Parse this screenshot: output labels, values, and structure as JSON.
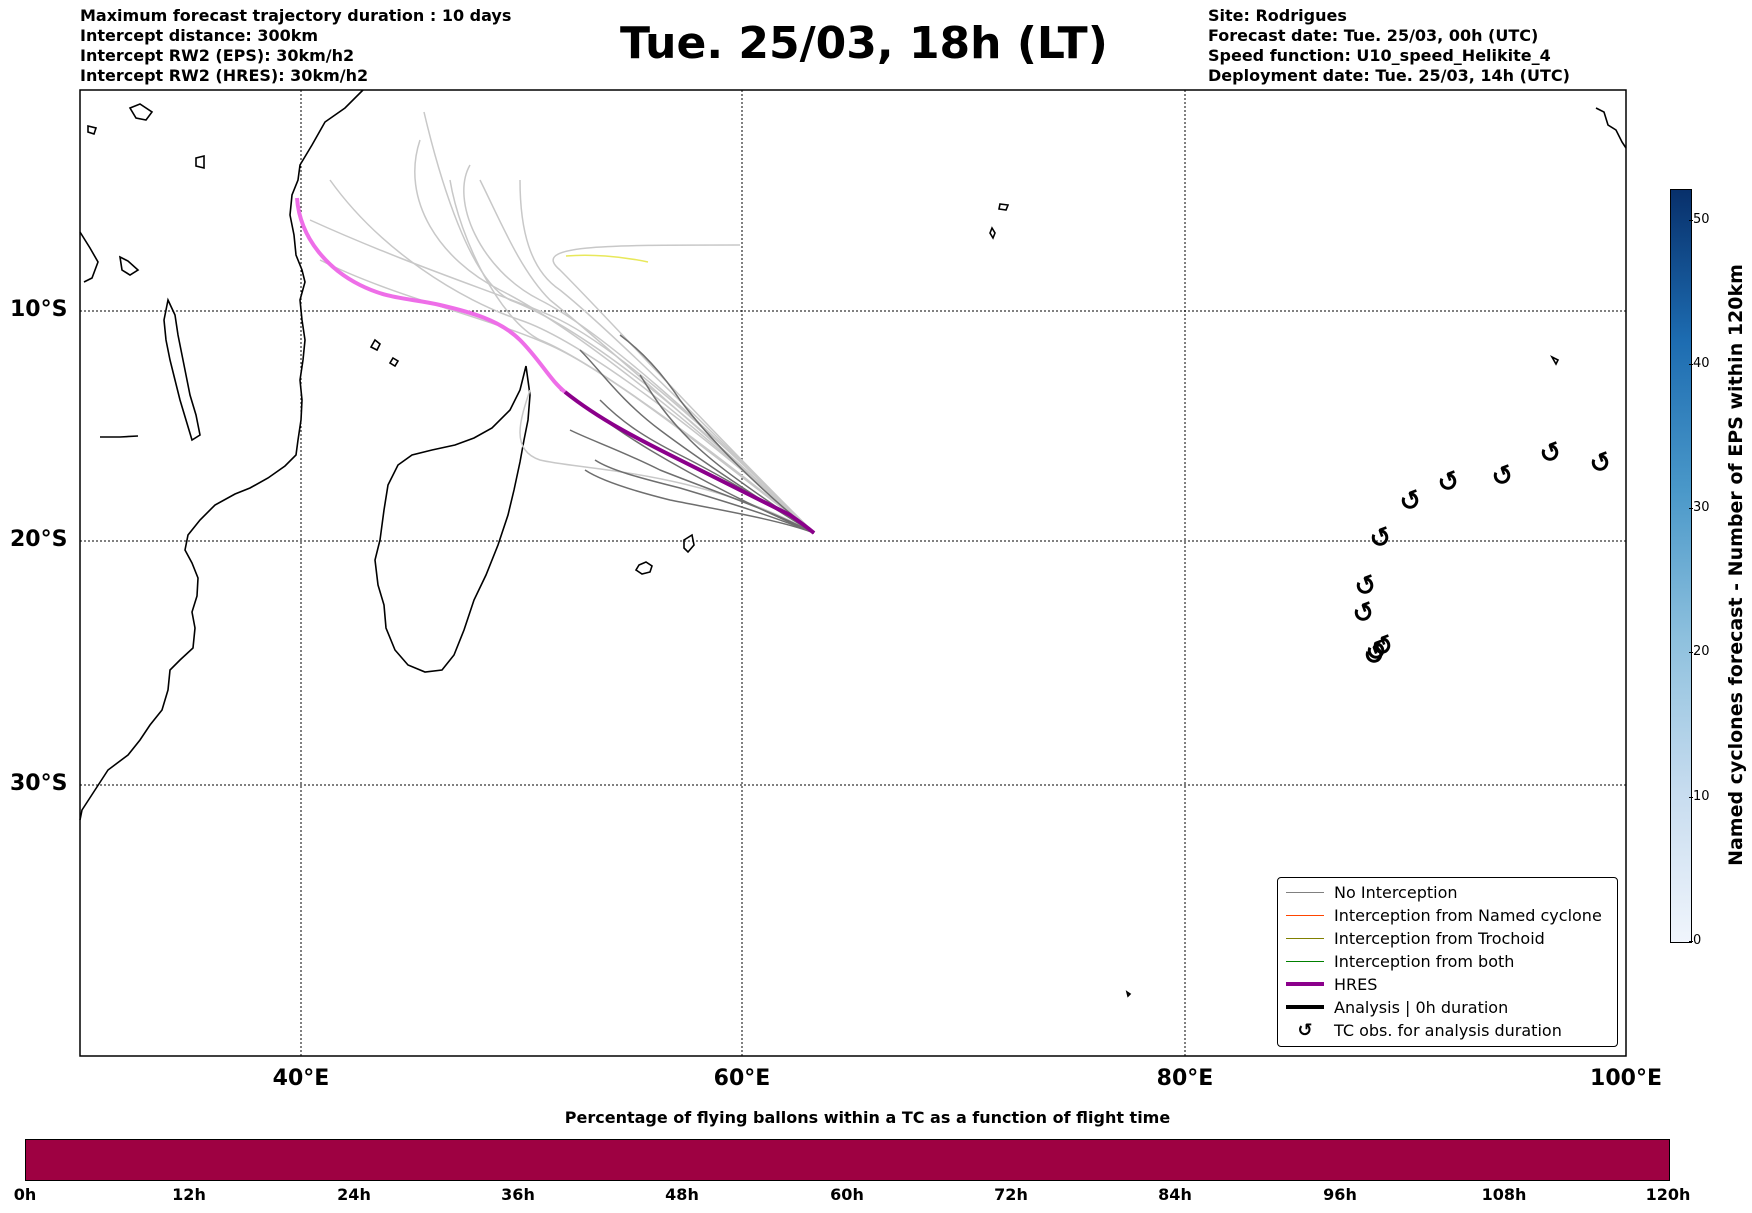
{
  "header": {
    "title": "Tue. 25/03, 18h (LT)",
    "left_lines": [
      "Maximum forecast trajectory duration : 10 days",
      "Intercept distance: 300km",
      "Intercept RW2 (EPS):  30km/h2",
      "Intercept RW2 (HRES): 30km/h2"
    ],
    "right_lines": [
      "Site: Rodrigues",
      "Forecast date: Tue. 25/03, 00h (UTC)",
      "Speed function: U10_speed_Helikite_4",
      "Deployment date: Tue. 25/03, 14h (UTC)"
    ]
  },
  "map": {
    "lat_labels": [
      "10°S",
      "20°S",
      "30°S"
    ],
    "lon_labels": [
      "40°E",
      "60°E",
      "80°E",
      "100°E"
    ],
    "gridlines": "dotted",
    "tc_symbol": "↺",
    "tc_obs_count": 13
  },
  "legend": {
    "position": "bottom-right",
    "items": [
      {
        "label": "No Interception",
        "color": "#808080",
        "style": "thin"
      },
      {
        "label": "Interception from Named cyclone",
        "color": "#ff4500",
        "style": "thin"
      },
      {
        "label": "Interception from Trochoid",
        "color": "#808000",
        "style": "thin"
      },
      {
        "label": "Interception from both",
        "color": "#008000",
        "style": "thin"
      },
      {
        "label": "HRES",
        "color": "#8b008b",
        "style": "thick"
      },
      {
        "label": "Analysis | 0h duration",
        "color": "#000000",
        "style": "thick"
      },
      {
        "label": "TC obs. for analysis duration",
        "color": "#000000",
        "style": "symbol"
      }
    ]
  },
  "colorbar": {
    "label": "Named cyclones forecast - Number of EPS within 120km",
    "ticks": [
      "0",
      "10",
      "20",
      "30",
      "40",
      "50"
    ],
    "colormap": "Blues"
  },
  "bottom_bar": {
    "title": "Percentage of flying ballons within a TC as a function of flight time",
    "color": "#9e0142",
    "ticks": [
      "0h",
      "12h",
      "24h",
      "36h",
      "48h",
      "60h",
      "72h",
      "84h",
      "96h",
      "108h",
      "120h"
    ]
  }
}
